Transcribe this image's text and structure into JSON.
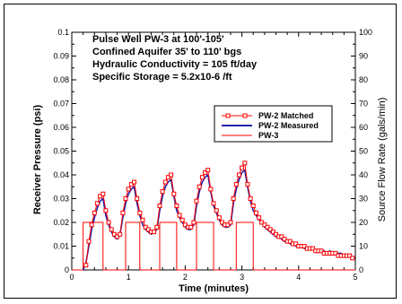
{
  "chart_data": {
    "type": "line",
    "annotations": [
      "Pulse Well PW-3 at 100'-105'",
      "Confined Aquifer 35' to 110' bgs",
      "Hydraulic Conductivity = 105 ft/day",
      "Specific Storage = 5.2x10-6 /ft"
    ],
    "xlabel": "Time (minutes)",
    "ylabel_left": "Receiver Pressure (psi)",
    "ylabel_right": "Source Flow Rate (gals/min)",
    "xlim": [
      0,
      5
    ],
    "ylim_left": [
      0,
      0.1
    ],
    "ylim_right": [
      0,
      100
    ],
    "x_ticks": [
      {
        "v": 0,
        "label": "0"
      },
      {
        "v": 1,
        "label": "1"
      },
      {
        "v": 2,
        "label": "2"
      },
      {
        "v": 3,
        "label": "3"
      },
      {
        "v": 4,
        "label": "4"
      },
      {
        "v": 5,
        "label": "5"
      }
    ],
    "y_left_ticks": [
      {
        "v": 0,
        "label": "0"
      },
      {
        "v": 0.01,
        "label": "0.01"
      },
      {
        "v": 0.02,
        "label": "0.02"
      },
      {
        "v": 0.03,
        "label": "0.03"
      },
      {
        "v": 0.04,
        "label": "0.04"
      },
      {
        "v": 0.05,
        "label": "0.05"
      },
      {
        "v": 0.06,
        "label": "0.06"
      },
      {
        "v": 0.07,
        "label": "0.07"
      },
      {
        "v": 0.08,
        "label": "0.08"
      },
      {
        "v": 0.09,
        "label": "0.09"
      },
      {
        "v": 0.1,
        "label": "0.1"
      }
    ],
    "y_right_ticks": [
      {
        "v": 0,
        "label": "0"
      },
      {
        "v": 10,
        "label": "10"
      },
      {
        "v": 20,
        "label": "20"
      },
      {
        "v": 30,
        "label": "30"
      },
      {
        "v": 40,
        "label": "40"
      },
      {
        "v": 50,
        "label": "50"
      },
      {
        "v": 60,
        "label": "60"
      },
      {
        "v": 70,
        "label": "70"
      },
      {
        "v": 80,
        "label": "80"
      },
      {
        "v": 90,
        "label": "90"
      },
      {
        "v": 100,
        "label": "100"
      }
    ],
    "legend_position": "upper-right",
    "series": [
      {
        "name": "PW-2 Matched",
        "axis": "left",
        "color": "#ff0000",
        "marker": "square",
        "x": [
          0.25,
          0.3,
          0.35,
          0.4,
          0.45,
          0.5,
          0.55,
          0.6,
          0.65,
          0.7,
          0.75,
          0.8,
          0.85,
          0.9,
          0.95,
          1.0,
          1.05,
          1.1,
          1.15,
          1.2,
          1.25,
          1.3,
          1.35,
          1.4,
          1.45,
          1.5,
          1.55,
          1.6,
          1.65,
          1.7,
          1.75,
          1.8,
          1.85,
          1.9,
          1.95,
          2.0,
          2.05,
          2.1,
          2.15,
          2.2,
          2.25,
          2.3,
          2.35,
          2.4,
          2.45,
          2.5,
          2.55,
          2.6,
          2.65,
          2.7,
          2.75,
          2.8,
          2.85,
          2.9,
          2.95,
          3.0,
          3.05,
          3.1,
          3.15,
          3.2,
          3.25,
          3.3,
          3.35,
          3.4,
          3.45,
          3.5,
          3.55,
          3.6,
          3.65,
          3.7,
          3.75,
          3.8,
          3.85,
          3.9,
          3.95,
          4.0,
          4.05,
          4.1,
          4.15,
          4.2,
          4.25,
          4.3,
          4.35,
          4.4,
          4.45,
          4.5,
          4.55,
          4.6,
          4.65,
          4.7,
          4.75,
          4.8,
          4.85,
          4.9,
          4.95
        ],
        "y": [
          0.002,
          0.012,
          0.019,
          0.024,
          0.028,
          0.031,
          0.032,
          0.025,
          0.02,
          0.017,
          0.015,
          0.014,
          0.015,
          0.024,
          0.03,
          0.034,
          0.036,
          0.037,
          0.03,
          0.024,
          0.021,
          0.018,
          0.017,
          0.016,
          0.016,
          0.018,
          0.027,
          0.033,
          0.037,
          0.039,
          0.04,
          0.032,
          0.027,
          0.023,
          0.021,
          0.019,
          0.018,
          0.018,
          0.02,
          0.029,
          0.035,
          0.039,
          0.041,
          0.042,
          0.034,
          0.028,
          0.025,
          0.022,
          0.02,
          0.019,
          0.019,
          0.02,
          0.03,
          0.036,
          0.04,
          0.043,
          0.045,
          0.036,
          0.03,
          0.027,
          0.024,
          0.022,
          0.02,
          0.019,
          0.018,
          0.017,
          0.016,
          0.015,
          0.014,
          0.014,
          0.013,
          0.012,
          0.012,
          0.011,
          0.011,
          0.01,
          0.01,
          0.01,
          0.009,
          0.009,
          0.009,
          0.008,
          0.008,
          0.008,
          0.007,
          0.007,
          0.007,
          0.007,
          0.007,
          0.006,
          0.006,
          0.006,
          0.006,
          0.006,
          0.005
        ]
      },
      {
        "name": "PW-2 Measured",
        "axis": "left",
        "color": "#2222aa",
        "marker": "none",
        "x": [
          0.2,
          0.25,
          0.3,
          0.35,
          0.4,
          0.45,
          0.5,
          0.55,
          0.6,
          0.65,
          0.7,
          0.75,
          0.8,
          0.85,
          0.9,
          0.95,
          1.0,
          1.05,
          1.1,
          1.15,
          1.2,
          1.25,
          1.3,
          1.35,
          1.4,
          1.45,
          1.5,
          1.55,
          1.6,
          1.65,
          1.7,
          1.75,
          1.8,
          1.85,
          1.9,
          1.95,
          2.0,
          2.05,
          2.1,
          2.15,
          2.2,
          2.25,
          2.3,
          2.35,
          2.4,
          2.45,
          2.5,
          2.55,
          2.6,
          2.65,
          2.7,
          2.75,
          2.8,
          2.85,
          2.9,
          2.95,
          3.0,
          3.05,
          3.1,
          3.15,
          3.2,
          3.25,
          3.3,
          3.35,
          3.4,
          3.45,
          3.5,
          3.55,
          3.6,
          3.65,
          3.7,
          3.75,
          3.8,
          3.85,
          3.9,
          3.95,
          4.0,
          4.05,
          4.1,
          4.15,
          4.2,
          4.25,
          4.3,
          4.35,
          4.4,
          4.45,
          4.5,
          4.55,
          4.6,
          4.65,
          4.7,
          4.75,
          4.8
        ],
        "y": [
          0.0,
          0.003,
          0.01,
          0.017,
          0.022,
          0.026,
          0.029,
          0.03,
          0.023,
          0.019,
          0.016,
          0.014,
          0.013,
          0.015,
          0.022,
          0.028,
          0.032,
          0.034,
          0.035,
          0.028,
          0.023,
          0.019,
          0.017,
          0.016,
          0.015,
          0.016,
          0.017,
          0.025,
          0.031,
          0.035,
          0.037,
          0.038,
          0.031,
          0.025,
          0.022,
          0.02,
          0.018,
          0.017,
          0.017,
          0.019,
          0.027,
          0.033,
          0.037,
          0.039,
          0.04,
          0.033,
          0.027,
          0.024,
          0.021,
          0.019,
          0.018,
          0.018,
          0.019,
          0.028,
          0.034,
          0.038,
          0.041,
          0.042,
          0.035,
          0.029,
          0.025,
          0.023,
          0.021,
          0.02,
          0.018,
          0.017,
          0.016,
          0.015,
          0.014,
          0.014,
          0.013,
          0.012,
          0.012,
          0.011,
          0.011,
          0.01,
          0.01,
          0.01,
          0.009,
          0.009,
          0.009,
          0.009,
          0.008,
          0.008,
          0.008,
          0.008,
          0.007,
          0.008,
          0.007,
          0.007,
          0.007,
          0.007,
          0.006
        ]
      },
      {
        "name": "PW-3",
        "axis": "right",
        "color": "#ff0000",
        "marker": "none",
        "x": [
          0.0,
          0.2,
          0.2,
          0.55,
          0.55,
          0.95,
          0.95,
          1.2,
          1.2,
          1.55,
          1.55,
          1.85,
          1.85,
          2.2,
          2.2,
          2.5,
          2.5,
          2.9,
          2.9,
          3.2,
          3.2,
          5.0
        ],
        "y": [
          0,
          0,
          20,
          20,
          0,
          0,
          20,
          20,
          0,
          0,
          20,
          20,
          0,
          0,
          20,
          20,
          0,
          0,
          20,
          20,
          0,
          0
        ]
      }
    ]
  }
}
